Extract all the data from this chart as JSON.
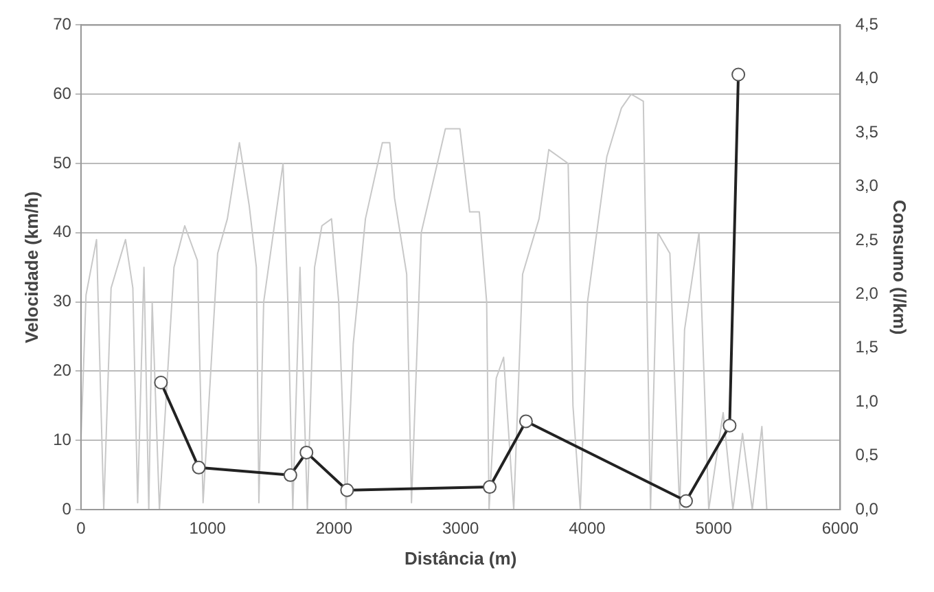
{
  "chart_data": {
    "type": "line",
    "xlabel": "Distância (m)",
    "ylabel": "Velocidade (km/h)",
    "y2label": "Consumo (l/km)",
    "xlim": [
      0,
      6000
    ],
    "xticks": [
      0,
      1000,
      2000,
      3000,
      4000,
      5000,
      6000
    ],
    "ylim": [
      0,
      70
    ],
    "yticks": [
      0,
      10,
      20,
      30,
      40,
      50,
      60,
      70
    ],
    "y2lim": [
      0,
      4.5
    ],
    "y2ticks": [
      {
        "value": 0,
        "label": "0,0"
      },
      {
        "value": 0.5,
        "label": "0,5"
      },
      {
        "value": 1,
        "label": "1,0"
      },
      {
        "value": 1.5,
        "label": "1,5"
      },
      {
        "value": 2,
        "label": "2,0"
      },
      {
        "value": 2.5,
        "label": "2,5"
      },
      {
        "value": 3,
        "label": "3,0"
      },
      {
        "value": 3.5,
        "label": "3,5"
      },
      {
        "value": 4,
        "label": "4,0"
      },
      {
        "value": 4.5,
        "label": "4,5"
      }
    ],
    "grid": "y",
    "legend": false,
    "series": [
      {
        "color": "#c8c8c8",
        "marker": "none",
        "line_style": "solid",
        "x": [
          0,
          40,
          123,
          180,
          238,
          352,
          410,
          448,
          498,
          536,
          563,
          620,
          735,
          820,
          920,
          965,
          1080,
          1157,
          1252,
          1329,
          1386,
          1406,
          1444,
          1597,
          1635,
          1674,
          1731,
          1789,
          1846,
          1904,
          1980,
          2037,
          2095,
          2152,
          2248,
          2382,
          2440,
          2478,
          2574,
          2612,
          2689,
          2880,
          2995,
          3072,
          3148,
          3206,
          3225,
          3282,
          3340,
          3420,
          3490,
          3620,
          3697,
          3850,
          3888,
          3946,
          4003,
          4156,
          4271,
          4348,
          4444,
          4501,
          4559,
          4654,
          4731,
          4770,
          4884,
          4961,
          5075,
          5152,
          5228,
          5305,
          5381,
          5420
        ],
        "values": [
          10,
          31,
          39,
          0,
          32,
          39,
          32,
          1,
          35,
          0,
          30,
          0,
          35,
          41,
          36,
          1,
          37,
          42,
          53,
          44,
          35,
          1,
          30,
          50,
          30,
          0,
          35,
          0,
          35,
          41,
          42,
          30,
          0,
          24,
          42,
          53,
          53,
          45,
          34,
          1,
          40,
          55,
          55,
          43,
          43,
          30,
          0,
          19,
          22,
          0,
          34,
          42,
          52,
          50,
          15,
          0,
          30,
          51,
          58,
          60,
          59,
          0,
          40,
          37,
          0,
          26,
          40,
          0,
          14,
          0,
          11,
          0,
          12,
          0
        ]
      },
      {
        "color": "#222222",
        "marker": "circle",
        "line_style": "solid",
        "axis": "y2",
        "x": [
          632,
          931,
          1655,
          1782,
          2103,
          3230,
          3517,
          4782,
          5126,
          5195
        ],
        "values": [
          1.18,
          0.39,
          0.32,
          0.53,
          0.18,
          0.21,
          0.82,
          0.08,
          0.78,
          4.04
        ]
      }
    ]
  }
}
